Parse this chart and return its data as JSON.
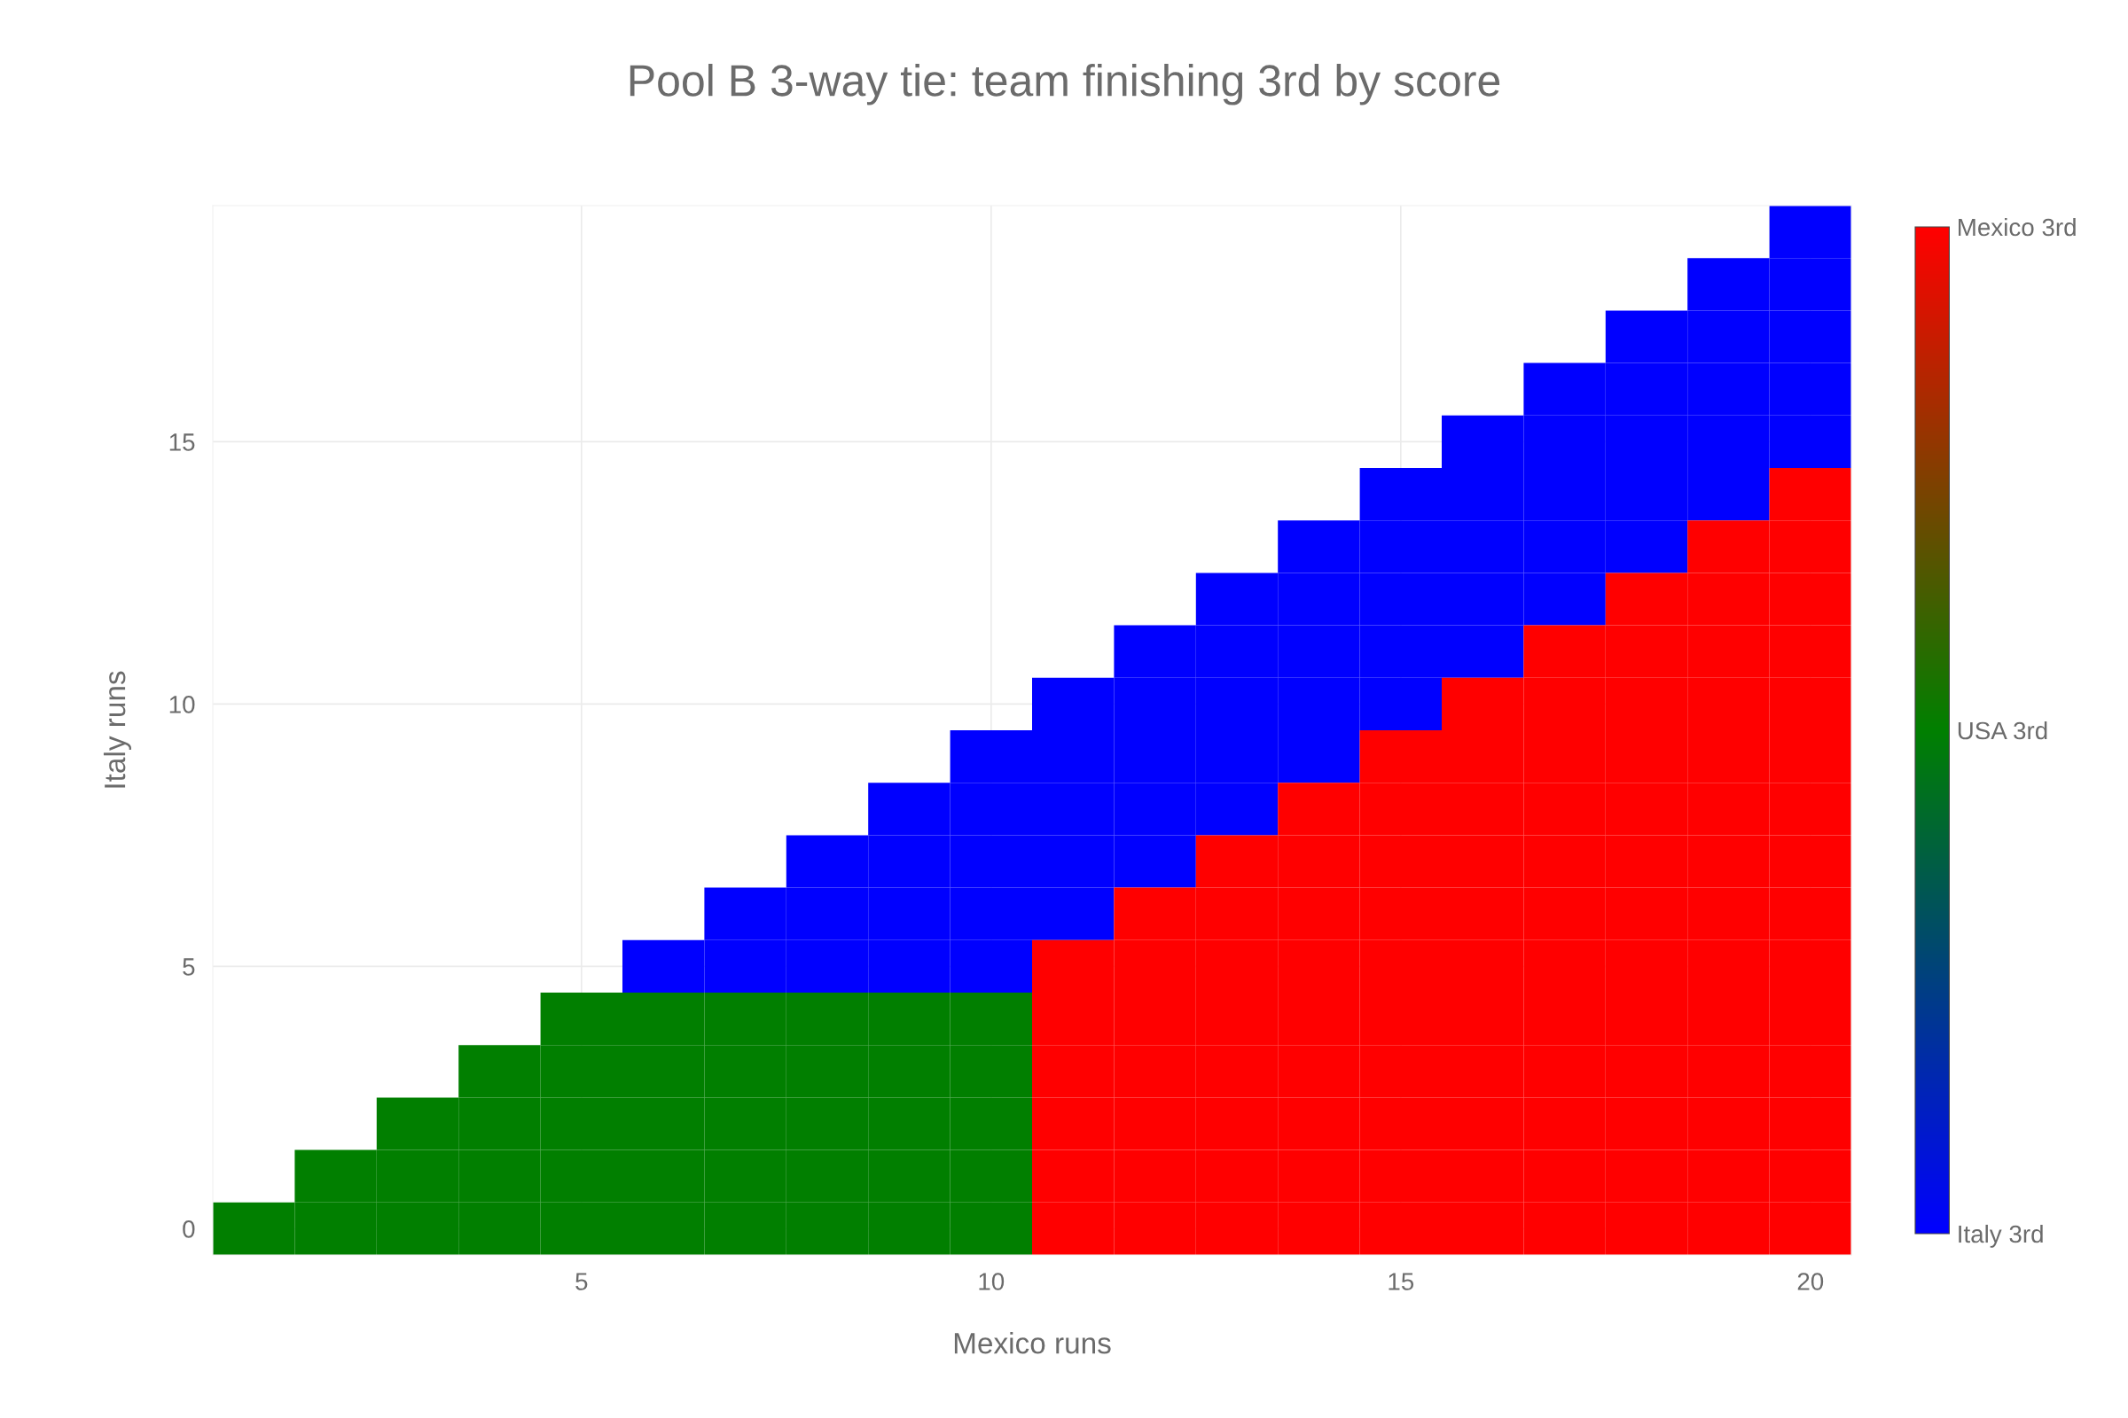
{
  "chart_data": {
    "type": "heatmap",
    "title": "Pool B 3-way tie: team finishing 3rd by score",
    "xlabel": "Mexico runs",
    "ylabel": "Italy runs",
    "x": [
      1,
      2,
      3,
      4,
      5,
      6,
      7,
      8,
      9,
      10,
      11,
      12,
      13,
      14,
      15,
      16,
      17,
      18,
      19,
      20
    ],
    "y": [
      19,
      18,
      17,
      16,
      15,
      14,
      13,
      12,
      11,
      10,
      9,
      8,
      7,
      6,
      5,
      4,
      3,
      2,
      1,
      0
    ],
    "cells": [
      [
        null,
        null,
        null,
        null,
        null,
        null,
        null,
        null,
        null,
        null,
        null,
        null,
        null,
        null,
        null,
        null,
        null,
        null,
        null,
        0
      ],
      [
        null,
        null,
        null,
        null,
        null,
        null,
        null,
        null,
        null,
        null,
        null,
        null,
        null,
        null,
        null,
        null,
        null,
        null,
        0,
        0
      ],
      [
        null,
        null,
        null,
        null,
        null,
        null,
        null,
        null,
        null,
        null,
        null,
        null,
        null,
        null,
        null,
        null,
        null,
        0,
        0,
        0
      ],
      [
        null,
        null,
        null,
        null,
        null,
        null,
        null,
        null,
        null,
        null,
        null,
        null,
        null,
        null,
        null,
        null,
        0,
        0,
        0,
        0
      ],
      [
        null,
        null,
        null,
        null,
        null,
        null,
        null,
        null,
        null,
        null,
        null,
        null,
        null,
        null,
        null,
        0,
        0,
        0,
        0,
        0
      ],
      [
        null,
        null,
        null,
        null,
        null,
        null,
        null,
        null,
        null,
        null,
        null,
        null,
        null,
        null,
        0,
        0,
        0,
        0,
        0,
        2
      ],
      [
        null,
        null,
        null,
        null,
        null,
        null,
        null,
        null,
        null,
        null,
        null,
        null,
        null,
        0,
        0,
        0,
        0,
        0,
        2,
        2
      ],
      [
        null,
        null,
        null,
        null,
        null,
        null,
        null,
        null,
        null,
        null,
        null,
        null,
        0,
        0,
        0,
        0,
        0,
        2,
        2,
        2
      ],
      [
        null,
        null,
        null,
        null,
        null,
        null,
        null,
        null,
        null,
        null,
        null,
        0,
        0,
        0,
        0,
        0,
        2,
        2,
        2,
        2
      ],
      [
        null,
        null,
        null,
        null,
        null,
        null,
        null,
        null,
        null,
        null,
        0,
        0,
        0,
        0,
        0,
        2,
        2,
        2,
        2,
        2
      ],
      [
        null,
        null,
        null,
        null,
        null,
        null,
        null,
        null,
        null,
        0,
        0,
        0,
        0,
        0,
        2,
        2,
        2,
        2,
        2,
        2
      ],
      [
        null,
        null,
        null,
        null,
        null,
        null,
        null,
        null,
        0,
        0,
        0,
        0,
        0,
        2,
        2,
        2,
        2,
        2,
        2,
        2
      ],
      [
        null,
        null,
        null,
        null,
        null,
        null,
        null,
        0,
        0,
        0,
        0,
        0,
        2,
        2,
        2,
        2,
        2,
        2,
        2,
        2
      ],
      [
        null,
        null,
        null,
        null,
        null,
        null,
        0,
        0,
        0,
        0,
        0,
        2,
        2,
        2,
        2,
        2,
        2,
        2,
        2,
        2
      ],
      [
        null,
        null,
        null,
        null,
        null,
        0,
        0,
        0,
        0,
        0,
        2,
        2,
        2,
        2,
        2,
        2,
        2,
        2,
        2,
        2
      ],
      [
        null,
        null,
        null,
        null,
        1,
        1,
        1,
        1,
        1,
        1,
        2,
        2,
        2,
        2,
        2,
        2,
        2,
        2,
        2,
        2
      ],
      [
        null,
        null,
        null,
        1,
        1,
        1,
        1,
        1,
        1,
        1,
        2,
        2,
        2,
        2,
        2,
        2,
        2,
        2,
        2,
        2
      ],
      [
        null,
        null,
        1,
        1,
        1,
        1,
        1,
        1,
        1,
        1,
        2,
        2,
        2,
        2,
        2,
        2,
        2,
        2,
        2,
        2
      ],
      [
        null,
        1,
        1,
        1,
        1,
        1,
        1,
        1,
        1,
        1,
        2,
        2,
        2,
        2,
        2,
        2,
        2,
        2,
        2,
        2
      ],
      [
        1,
        1,
        1,
        1,
        1,
        1,
        1,
        1,
        1,
        1,
        2,
        2,
        2,
        2,
        2,
        2,
        2,
        2,
        2,
        2
      ]
    ],
    "colors": [
      "#0000ff",
      "#008000",
      "#ff0000"
    ],
    "xlim": [
      0.5,
      20.5
    ],
    "ylim": [
      -0.5,
      19.5
    ],
    "xticks": [
      5,
      10,
      15,
      20
    ],
    "yticks": [
      0,
      5,
      10,
      15
    ],
    "clim": [
      0,
      2
    ],
    "cticks": [
      {
        "value": 0,
        "label": "Italy 3rd"
      },
      {
        "value": 1,
        "label": "USA 3rd"
      },
      {
        "value": 2,
        "label": "Mexico 3rd"
      }
    ],
    "grid": true
  }
}
